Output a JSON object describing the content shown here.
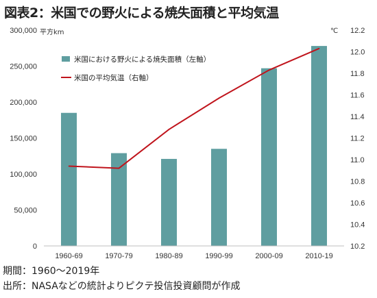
{
  "title": "図表2：米国での野火による焼失面積と平均気温",
  "footnotes": {
    "period": "期間：1960～2019年",
    "source": "出所：NASAなどの統計よりピクテ投信投資顧問が作成"
  },
  "colors": {
    "bar": "#5f9ea0",
    "line": "#c0141c",
    "axis": "#bfbfbf"
  },
  "chart_data": {
    "type": "bar",
    "categories": [
      "1960-69",
      "1970-79",
      "1980-89",
      "1990-99",
      "2000-09",
      "2010-19"
    ],
    "series": [
      {
        "name": "米国における野火による焼失面積（左軸）",
        "type": "bar",
        "axis": "left",
        "values": [
          185000,
          129000,
          121000,
          135000,
          247000,
          278000
        ]
      },
      {
        "name": "米国の平均気温（右軸）",
        "type": "line",
        "axis": "right",
        "values": [
          10.94,
          10.92,
          11.28,
          11.57,
          11.83,
          12.03
        ]
      }
    ],
    "y_left": {
      "unit": "平方km",
      "ylim": [
        0,
        300000
      ],
      "ticks": [
        0,
        50000,
        100000,
        150000,
        200000,
        250000,
        300000
      ],
      "tick_labels": [
        "0",
        "50,000",
        "100,000",
        "150,000",
        "200,000",
        "250,000",
        "300,000"
      ]
    },
    "y_right": {
      "unit": "℃",
      "ylim": [
        10.2,
        12.2
      ],
      "ticks": [
        10.2,
        10.4,
        10.6,
        10.8,
        11.0,
        11.2,
        11.4,
        11.6,
        11.8,
        12.0,
        12.2
      ],
      "tick_labels": [
        "10.2",
        "10.4",
        "10.6",
        "10.8",
        "11.0",
        "11.2",
        "11.4",
        "11.6",
        "11.8",
        "12.0",
        "12.2"
      ]
    },
    "grid": false,
    "legend_position": "top-left"
  }
}
